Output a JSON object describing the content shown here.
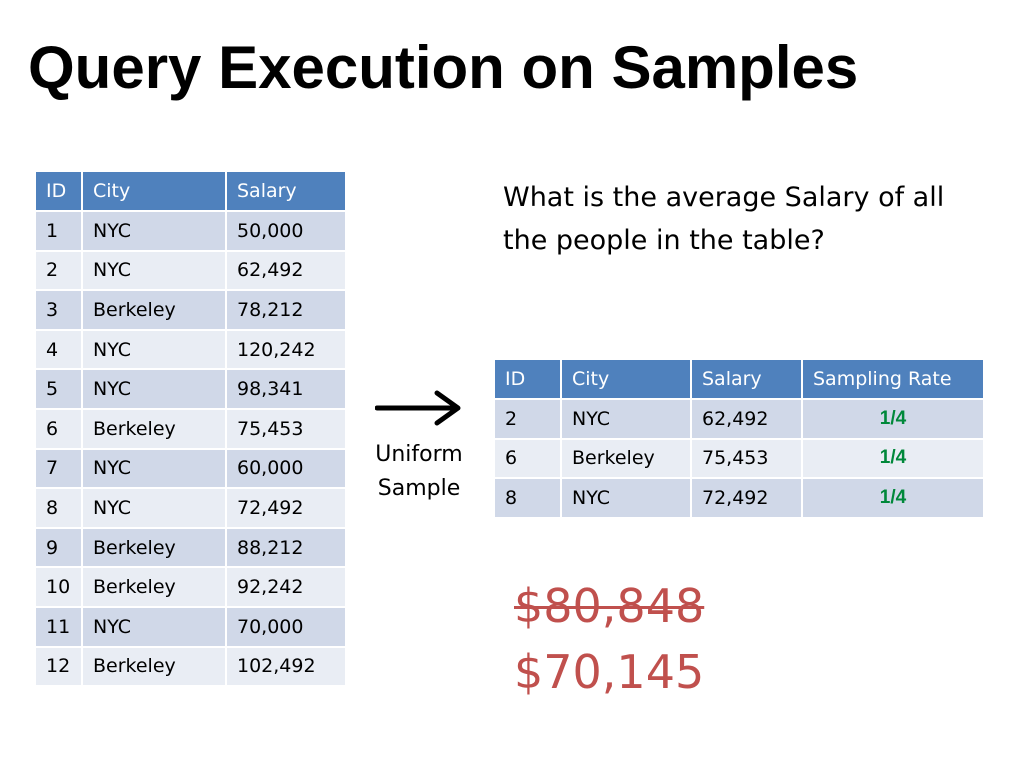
{
  "title": "Query Execution on Samples",
  "population_table": {
    "headers": [
      "ID",
      "City",
      "Salary"
    ],
    "rows": [
      [
        "1",
        "NYC",
        "50,000"
      ],
      [
        "2",
        "NYC",
        "62,492"
      ],
      [
        "3",
        "Berkeley",
        "78,212"
      ],
      [
        "4",
        "NYC",
        "120,242"
      ],
      [
        "5",
        "NYC",
        "98,341"
      ],
      [
        "6",
        "Berkeley",
        "75,453"
      ],
      [
        "7",
        "NYC",
        "60,000"
      ],
      [
        "8",
        "NYC",
        "72,492"
      ],
      [
        "9",
        "Berkeley",
        "88,212"
      ],
      [
        "10",
        "Berkeley",
        "92,242"
      ],
      [
        "11",
        "NYC",
        "70,000"
      ],
      [
        "12",
        "Berkeley",
        "102,492"
      ]
    ]
  },
  "question": "What is the average Salary of all the people in the table?",
  "arrow_label": "Uniform Sample",
  "sample_table": {
    "headers": [
      "ID",
      "City",
      "Salary",
      "Sampling Rate"
    ],
    "rows": [
      [
        "2",
        "NYC",
        "62,492",
        "1/4"
      ],
      [
        "6",
        "Berkeley",
        "75,453",
        "1/4"
      ],
      [
        "8",
        "NYC",
        "72,492",
        "1/4"
      ]
    ]
  },
  "results": {
    "true_average": "$80,848",
    "sample_estimate": "$70,145"
  },
  "colors": {
    "header_blue": "#4f81bd",
    "row_odd": "#d0d8e8",
    "row_even": "#e9edf4",
    "rate_green": "#00883a",
    "result_red": "#c0504d"
  }
}
